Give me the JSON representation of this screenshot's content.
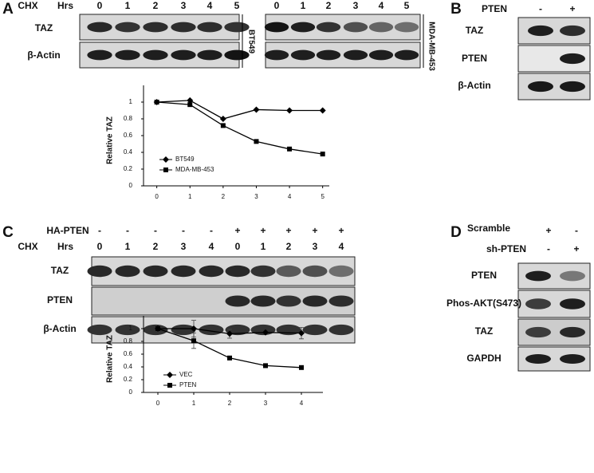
{
  "panels": {
    "A": {
      "label": "A",
      "treatment": "CHX",
      "time_unit": "Hrs",
      "lanes": [
        "0",
        "1",
        "2",
        "3",
        "4",
        "5"
      ],
      "rows": [
        "TAZ",
        "β-Actin"
      ],
      "cell_lines": [
        "BT549",
        "MDA-MB-453"
      ]
    },
    "B": {
      "label": "B",
      "condition": "PTEN",
      "lanes": [
        "-",
        "+"
      ],
      "rows": [
        "TAZ",
        "PTEN",
        "β-Actin"
      ]
    },
    "C": {
      "label": "C",
      "condition": "HA-PTEN",
      "condition_lanes": [
        "-",
        "-",
        "-",
        "-",
        "-",
        "+",
        "+",
        "+",
        "+",
        "+"
      ],
      "treatment": "CHX",
      "time_unit": "Hrs",
      "lanes": [
        "0",
        "1",
        "2",
        "3",
        "4",
        "0",
        "1",
        "2",
        "3",
        "4"
      ],
      "rows": [
        "TAZ",
        "PTEN",
        "β-Actin"
      ]
    },
    "D": {
      "label": "D",
      "conditions": [
        {
          "name": "Scramble",
          "lanes": [
            "+",
            "-"
          ]
        },
        {
          "name": "sh-PTEN",
          "lanes": [
            "-",
            "+"
          ]
        }
      ],
      "rows": [
        "PTEN",
        "Phos-AKT(S473)",
        "TAZ",
        "GAPDH"
      ]
    }
  },
  "chart_data": [
    {
      "type": "line",
      "ylabel": "Relative TAZ",
      "x": [
        0,
        1,
        2,
        3,
        4,
        5
      ],
      "xlim": [
        -0.4,
        5.2
      ],
      "xticks": [
        0,
        1,
        2,
        3,
        4,
        5
      ],
      "ylim": [
        0,
        1.2
      ],
      "yticks": [
        0,
        0.2,
        0.4,
        0.6,
        0.8,
        1
      ],
      "legend": "lower left",
      "series": [
        {
          "name": "BT549",
          "color": "#000000",
          "marker": "diamond",
          "values": [
            1,
            1.02,
            0.8,
            0.91,
            0.9,
            0.9
          ]
        },
        {
          "name": "MDA-MB-453",
          "color": "#000000",
          "marker": "square",
          "values": [
            1,
            0.97,
            0.72,
            0.53,
            0.44,
            0.38
          ]
        }
      ]
    },
    {
      "type": "line",
      "ylabel": "Relative TAZ",
      "x": [
        0,
        1,
        2,
        3,
        4
      ],
      "xlim": [
        -0.4,
        4.6
      ],
      "xticks": [
        0,
        1,
        2,
        3,
        4
      ],
      "ylim": [
        0,
        1.2
      ],
      "yticks": [
        0,
        0.2,
        0.4,
        0.6,
        0.8,
        1
      ],
      "legend": "lower left",
      "series": [
        {
          "name": "VEC",
          "color": "#000000",
          "marker": "diamond",
          "values": [
            1,
            1,
            0.92,
            0.94,
            0.93
          ],
          "errors": [
            0,
            0.13,
            0.07,
            0.01,
            0.09
          ]
        },
        {
          "name": "PTEN",
          "color": "#000000",
          "marker": "square",
          "values": [
            1,
            0.81,
            0.54,
            0.42,
            0.39
          ],
          "errors": [
            0,
            0.12,
            0.03,
            0.03,
            0.02
          ]
        }
      ]
    }
  ]
}
